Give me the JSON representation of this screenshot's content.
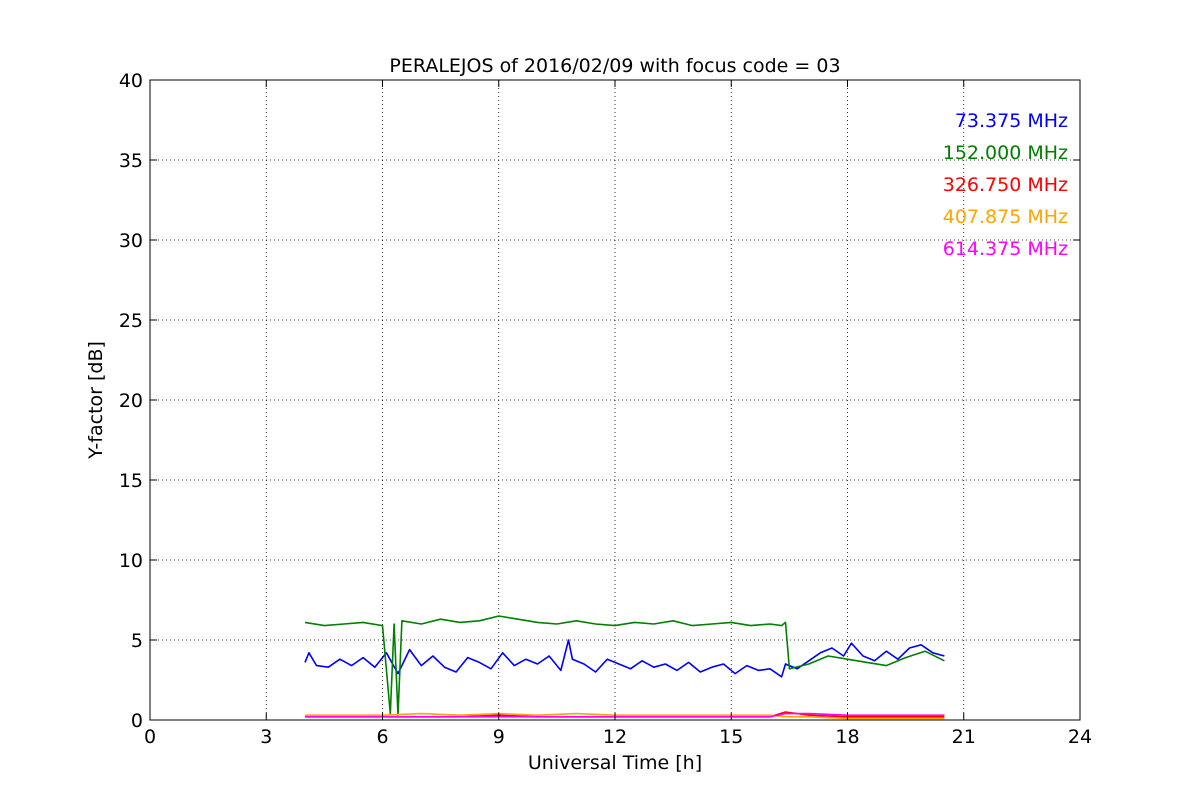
{
  "chart_data": {
    "type": "line",
    "title": "PERALEJOS of 2016/02/09 with focus code = 03",
    "xlabel": "Universal Time [h]",
    "ylabel": "Y-factor [dB]",
    "xlim": [
      0,
      24
    ],
    "ylim": [
      0,
      40
    ],
    "xticks": [
      0,
      3,
      6,
      9,
      12,
      15,
      18,
      21,
      24
    ],
    "yticks": [
      0,
      5,
      10,
      15,
      20,
      25,
      30,
      35,
      40
    ],
    "grid": true,
    "legend_position": "top-right",
    "series": [
      {
        "name": "73.375 MHz",
        "color": "#0000ff",
        "x": [
          4.0,
          4.1,
          4.3,
          4.6,
          4.9,
          5.2,
          5.5,
          5.8,
          6.1,
          6.4,
          6.7,
          7.0,
          7.3,
          7.6,
          7.9,
          8.2,
          8.5,
          8.8,
          9.1,
          9.4,
          9.7,
          10.0,
          10.3,
          10.6,
          10.8,
          10.9,
          11.2,
          11.5,
          11.8,
          12.1,
          12.4,
          12.7,
          13.0,
          13.3,
          13.6,
          13.9,
          14.2,
          14.5,
          14.8,
          15.1,
          15.4,
          15.7,
          16.0,
          16.3,
          16.4,
          16.7,
          17.0,
          17.3,
          17.6,
          17.9,
          18.1,
          18.4,
          18.7,
          19.0,
          19.3,
          19.6,
          19.9,
          20.2,
          20.5
        ],
        "y": [
          3.6,
          4.2,
          3.4,
          3.3,
          3.8,
          3.4,
          3.9,
          3.3,
          4.2,
          2.9,
          4.4,
          3.4,
          4.0,
          3.3,
          3.0,
          3.9,
          3.6,
          3.2,
          4.2,
          3.4,
          3.8,
          3.5,
          4.0,
          3.1,
          5.0,
          3.8,
          3.5,
          3.0,
          3.8,
          3.5,
          3.2,
          3.7,
          3.3,
          3.5,
          3.1,
          3.6,
          3.0,
          3.3,
          3.5,
          2.9,
          3.4,
          3.1,
          3.2,
          2.7,
          3.5,
          3.2,
          3.7,
          4.2,
          4.5,
          4.0,
          4.8,
          4.0,
          3.7,
          4.3,
          3.8,
          4.5,
          4.7,
          4.2,
          4.0
        ]
      },
      {
        "name": "152.000 MHz",
        "color": "#008000",
        "x": [
          4.0,
          4.5,
          5.0,
          5.5,
          6.0,
          6.2,
          6.3,
          6.4,
          6.5,
          7.0,
          7.5,
          8.0,
          8.5,
          9.0,
          9.5,
          10.0,
          10.5,
          11.0,
          11.5,
          12.0,
          12.5,
          13.0,
          13.5,
          14.0,
          14.5,
          15.0,
          15.5,
          16.0,
          16.3,
          16.4,
          16.5,
          17.0,
          17.5,
          18.0,
          18.5,
          19.0,
          19.5,
          20.0,
          20.5
        ],
        "y": [
          6.1,
          5.9,
          6.0,
          6.1,
          5.9,
          0.4,
          6.0,
          0.3,
          6.2,
          6.0,
          6.3,
          6.1,
          6.2,
          6.5,
          6.3,
          6.1,
          6.0,
          6.2,
          6.0,
          5.9,
          6.1,
          6.0,
          6.2,
          5.9,
          6.0,
          6.1,
          5.9,
          6.0,
          5.9,
          6.1,
          3.2,
          3.5,
          4.0,
          3.8,
          3.6,
          3.4,
          3.9,
          4.3,
          3.7
        ]
      },
      {
        "name": "326.750 MHz",
        "color": "#ff0000",
        "x": [
          4.0,
          6.0,
          8.0,
          9.0,
          10.0,
          12.0,
          14.0,
          16.0,
          16.4,
          17.0,
          18.0,
          20.0,
          20.5
        ],
        "y": [
          0.2,
          0.2,
          0.2,
          0.3,
          0.2,
          0.2,
          0.2,
          0.2,
          0.5,
          0.3,
          0.2,
          0.2,
          0.2
        ]
      },
      {
        "name": "407.875 MHz",
        "color": "#ffa500",
        "x": [
          4.0,
          5.0,
          6.0,
          7.0,
          8.0,
          9.0,
          10.0,
          11.0,
          12.0,
          13.0,
          14.0,
          15.0,
          16.0,
          16.4,
          17.0,
          18.0,
          19.0,
          20.0,
          20.5
        ],
        "y": [
          0.3,
          0.3,
          0.3,
          0.4,
          0.3,
          0.4,
          0.3,
          0.4,
          0.3,
          0.3,
          0.3,
          0.3,
          0.3,
          0.2,
          0.2,
          0.1,
          0.1,
          0.1,
          0.1
        ]
      },
      {
        "name": "614.375 MHz",
        "color": "#ff00ff",
        "x": [
          4.0,
          5.0,
          6.0,
          7.0,
          8.0,
          9.0,
          10.0,
          11.0,
          12.0,
          13.0,
          14.0,
          15.0,
          16.0,
          16.4,
          17.0,
          18.0,
          19.0,
          20.0,
          20.5
        ],
        "y": [
          0.2,
          0.2,
          0.2,
          0.2,
          0.2,
          0.2,
          0.2,
          0.2,
          0.2,
          0.2,
          0.2,
          0.2,
          0.2,
          0.4,
          0.4,
          0.3,
          0.3,
          0.3,
          0.3
        ]
      }
    ]
  }
}
